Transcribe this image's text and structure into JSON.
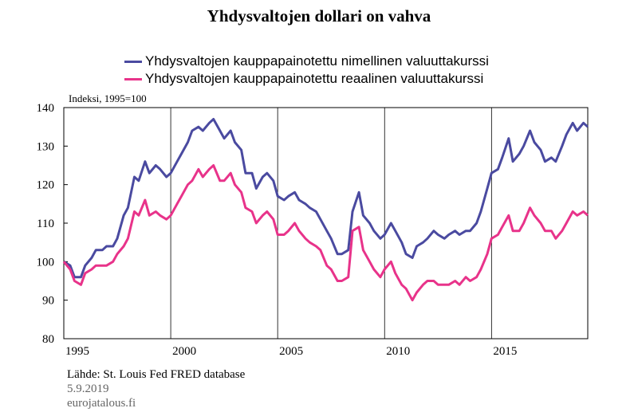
{
  "chart_data": {
    "type": "line",
    "title": "Yhdysvaltojen dollari on vahva",
    "ylabel": "Indeksi, 1995=100",
    "xlabel": "",
    "ylim": [
      80,
      140
    ],
    "xlim": [
      1995,
      2019.5
    ],
    "yticks": [
      80,
      90,
      100,
      110,
      120,
      130,
      140
    ],
    "xticks": [
      1995,
      2000,
      2005,
      2010,
      2015
    ],
    "grid": "vertical lines at 5-year ticks",
    "legend_position": "top-left",
    "series": [
      {
        "name": "Yhdysvaltojen kauppapainotettu nimellinen valuuttakurssi",
        "color": "#4a4aa0",
        "x": [
          1995.0,
          1995.3,
          1995.5,
          1995.8,
          1996.0,
          1996.3,
          1996.5,
          1996.8,
          1997.0,
          1997.3,
          1997.5,
          1997.8,
          1998.0,
          1998.3,
          1998.5,
          1998.8,
          1999.0,
          1999.3,
          1999.5,
          1999.8,
          2000.0,
          2000.3,
          2000.5,
          2000.8,
          2001.0,
          2001.3,
          2001.5,
          2001.8,
          2002.0,
          2002.3,
          2002.5,
          2002.8,
          2003.0,
          2003.3,
          2003.5,
          2003.8,
          2004.0,
          2004.3,
          2004.5,
          2004.8,
          2005.0,
          2005.3,
          2005.5,
          2005.8,
          2006.0,
          2006.3,
          2006.5,
          2006.8,
          2007.0,
          2007.3,
          2007.5,
          2007.8,
          2008.0,
          2008.3,
          2008.5,
          2008.8,
          2009.0,
          2009.3,
          2009.5,
          2009.8,
          2010.0,
          2010.3,
          2010.5,
          2010.8,
          2011.0,
          2011.3,
          2011.5,
          2011.8,
          2012.0,
          2012.3,
          2012.5,
          2012.8,
          2013.0,
          2013.3,
          2013.5,
          2013.8,
          2014.0,
          2014.3,
          2014.5,
          2014.8,
          2015.0,
          2015.3,
          2015.5,
          2015.8,
          2016.0,
          2016.3,
          2016.5,
          2016.8,
          2017.0,
          2017.3,
          2017.5,
          2017.8,
          2018.0,
          2018.3,
          2018.5,
          2018.8,
          2019.0,
          2019.3,
          2019.5
        ],
        "values": [
          100,
          99,
          96,
          96,
          99,
          101,
          103,
          103,
          104,
          104,
          106,
          112,
          114,
          122,
          121,
          126,
          123,
          125,
          124,
          122,
          123,
          126,
          128,
          131,
          134,
          135,
          134,
          136,
          137,
          134,
          132,
          134,
          131,
          129,
          123,
          123,
          119,
          122,
          123,
          121,
          117,
          116,
          117,
          118,
          116,
          115,
          114,
          113,
          111,
          108,
          106,
          102,
          102,
          103,
          113,
          118,
          112,
          110,
          108,
          106,
          107,
          110,
          108,
          105,
          102,
          101,
          104,
          105,
          106,
          108,
          107,
          106,
          107,
          108,
          107,
          108,
          108,
          110,
          113,
          119,
          123,
          124,
          127,
          132,
          126,
          128,
          130,
          134,
          131,
          129,
          126,
          127,
          126,
          130,
          133,
          136,
          134,
          136,
          135
        ]
      },
      {
        "name": "Yhdysvaltojen kauppapainotettu reaalinen valuuttakurssi",
        "color": "#e8338a",
        "x": [
          1995.0,
          1995.3,
          1995.5,
          1995.8,
          1996.0,
          1996.3,
          1996.5,
          1996.8,
          1997.0,
          1997.3,
          1997.5,
          1997.8,
          1998.0,
          1998.3,
          1998.5,
          1998.8,
          1999.0,
          1999.3,
          1999.5,
          1999.8,
          2000.0,
          2000.3,
          2000.5,
          2000.8,
          2001.0,
          2001.3,
          2001.5,
          2001.8,
          2002.0,
          2002.3,
          2002.5,
          2002.8,
          2003.0,
          2003.3,
          2003.5,
          2003.8,
          2004.0,
          2004.3,
          2004.5,
          2004.8,
          2005.0,
          2005.3,
          2005.5,
          2005.8,
          2006.0,
          2006.3,
          2006.5,
          2006.8,
          2007.0,
          2007.3,
          2007.5,
          2007.8,
          2008.0,
          2008.3,
          2008.5,
          2008.8,
          2009.0,
          2009.3,
          2009.5,
          2009.8,
          2010.0,
          2010.3,
          2010.5,
          2010.8,
          2011.0,
          2011.3,
          2011.5,
          2011.8,
          2012.0,
          2012.3,
          2012.5,
          2012.8,
          2013.0,
          2013.3,
          2013.5,
          2013.8,
          2014.0,
          2014.3,
          2014.5,
          2014.8,
          2015.0,
          2015.3,
          2015.5,
          2015.8,
          2016.0,
          2016.3,
          2016.5,
          2016.8,
          2017.0,
          2017.3,
          2017.5,
          2017.8,
          2018.0,
          2018.3,
          2018.5,
          2018.8,
          2019.0,
          2019.3,
          2019.5
        ],
        "values": [
          100,
          98,
          95,
          94,
          97,
          98,
          99,
          99,
          99,
          100,
          102,
          104,
          106,
          113,
          112,
          116,
          112,
          113,
          112,
          111,
          112,
          115,
          117,
          120,
          121,
          124,
          122,
          124,
          125,
          121,
          121,
          123,
          120,
          118,
          114,
          113,
          110,
          112,
          113,
          111,
          107,
          107,
          108,
          110,
          108,
          106,
          105,
          104,
          103,
          99,
          98,
          95,
          95,
          96,
          108,
          109,
          103,
          100,
          98,
          96,
          98,
          100,
          97,
          94,
          93,
          90,
          92,
          94,
          95,
          95,
          94,
          94,
          94,
          95,
          94,
          96,
          95,
          96,
          98,
          102,
          106,
          107,
          109,
          112,
          108,
          108,
          110,
          114,
          112,
          110,
          108,
          108,
          106,
          108,
          110,
          113,
          112,
          113,
          112
        ]
      }
    ]
  },
  "footer": {
    "source": "Lähde: St. Louis Fed FRED database",
    "date": "5.9.2019",
    "site": "eurojatalous.fi"
  }
}
